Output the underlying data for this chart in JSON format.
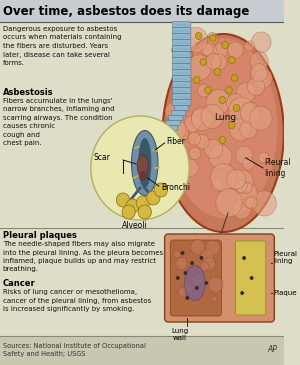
{
  "title": "Over time, asbestos does its damage",
  "bg_color": "#ddddc8",
  "header_bg": "#ddddc8",
  "title_color": "#000000",
  "title_fontsize": 8.5,
  "intro_text": "Dangerous exposure to asbestos\noccurs when materials containing\nthe fibers are disturbed. Years\nlater, disease can take several\nforms.",
  "section1_title": "Asbestosis",
  "section1_text": "Fibers accumulate in the lungs'\nnarrow branches, inflaming and\nscarring airways. The condition\ncauses chronic\ncough and\nchest pain.",
  "section2_title": "Pleural plaques",
  "section2_text": "The needle-shaped fibers may also migrate\ninto the pleural lining. As the pleura becomes\ninflamed, plaque builds up and may restrict\nbreathing.",
  "section3_title": "Cancer",
  "section3_text": "Risks of lung cancer or mesothelioma,\ncancer of the pleural lining, from asbestos\nis increased significantly by smoking.",
  "footer_text": "Sources: National Institute of Occupational\nSafety and Health; USGS",
  "ap_text": "AP",
  "lung_main_color": "#d4856a",
  "lung_edge_color": "#9b3a1a",
  "lung_bubble_color": "#e0a080",
  "lung_bubble_edge": "#b05030",
  "fiber_dot_color": "#c8a020",
  "fiber_dot_edge": "#907010",
  "trachea_color": "#90b8cc",
  "trachea_edge": "#507890",
  "pleural_lining_color": "#c8785a",
  "bronchi_circle_bg": "#e8e8b0",
  "bronchi_circle_edge": "#b0b060",
  "bronchi_tube_color": "#7090a8",
  "bronchi_tube_edge": "#405870",
  "scar_color": "#506878",
  "alveoli_color": "#d4b840",
  "alveoli_edge": "#907820",
  "cross_outer_color": "#d4906a",
  "cross_outer_edge": "#804020",
  "cross_inner_color": "#b06840",
  "cross_plaque_color": "#d4c050",
  "cross_plaque_edge": "#909020",
  "cross_dot_color": "#303030",
  "footer_bg": "#c8c8b0",
  "divider_color": "#888878",
  "label_scar": "Scar",
  "label_fiber": "Fiber",
  "label_bronchi": "Bronchi",
  "label_alveoli": "Alveoli",
  "label_lung": "Lung",
  "label_pleural_top": "Pleural\nlining",
  "label_lung_wall": "Lung\nwall",
  "label_pleural_bot": "Pleural\nlining",
  "label_plaque": "Plaque"
}
